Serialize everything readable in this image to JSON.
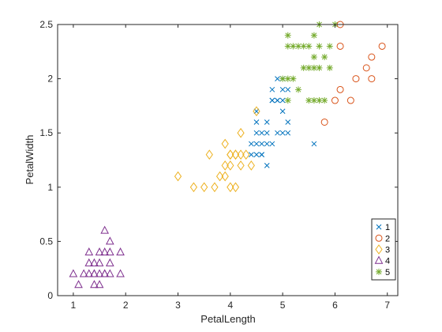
{
  "chart_data": {
    "type": "scatter",
    "xlabel": "PetalLength",
    "ylabel": "PetalWidth",
    "xlim": [
      0.7,
      7.2
    ],
    "ylim": [
      0,
      2.5
    ],
    "xticks": [
      1,
      2,
      3,
      4,
      5,
      6,
      7
    ],
    "yticks": [
      0,
      0.5,
      1,
      1.5,
      2,
      2.5
    ],
    "grid": false,
    "legend_position": "bottom-right",
    "series": [
      {
        "name": "1",
        "marker": "x",
        "color": "#0072BD",
        "points": [
          [
            4.4,
            1.3
          ],
          [
            4.5,
            1.3
          ],
          [
            4.4,
            1.4
          ],
          [
            4.5,
            1.5
          ],
          [
            4.6,
            1.5
          ],
          [
            4.6,
            1.4
          ],
          [
            4.5,
            1.6
          ],
          [
            4.5,
            1.7
          ],
          [
            4.6,
            1.3
          ],
          [
            4.7,
            1.4
          ],
          [
            4.7,
            1.5
          ],
          [
            4.7,
            1.6
          ],
          [
            4.7,
            1.2
          ],
          [
            4.8,
            1.8
          ],
          [
            4.8,
            1.4
          ],
          [
            4.9,
            1.5
          ],
          [
            4.9,
            1.8
          ],
          [
            4.8,
            1.9
          ],
          [
            4.9,
            2.0
          ],
          [
            5.0,
            1.7
          ],
          [
            5.0,
            1.9
          ],
          [
            5.0,
            1.5
          ],
          [
            5.1,
            1.5
          ],
          [
            5.1,
            1.6
          ],
          [
            5.0,
            2.0
          ],
          [
            5.1,
            1.9
          ],
          [
            4.9,
            1.8
          ],
          [
            5.6,
            1.4
          ],
          [
            4.6,
            1.3
          ],
          [
            4.8,
            1.8
          ],
          [
            5.0,
            1.8
          ],
          [
            4.5,
            1.4
          ]
        ]
      },
      {
        "name": "2",
        "marker": "o",
        "color": "#D95319",
        "points": [
          [
            5.8,
            1.6
          ],
          [
            6.0,
            1.8
          ],
          [
            6.1,
            1.9
          ],
          [
            6.1,
            2.3
          ],
          [
            6.1,
            2.5
          ],
          [
            6.3,
            1.8
          ],
          [
            6.4,
            2.0
          ],
          [
            6.6,
            2.1
          ],
          [
            6.7,
            2.0
          ],
          [
            6.7,
            2.2
          ],
          [
            6.9,
            2.3
          ]
        ]
      },
      {
        "name": "3",
        "marker": "diamond",
        "color": "#EDB120",
        "points": [
          [
            3.0,
            1.1
          ],
          [
            3.3,
            1.0
          ],
          [
            3.5,
            1.0
          ],
          [
            3.6,
            1.3
          ],
          [
            3.7,
            1.0
          ],
          [
            3.8,
            1.1
          ],
          [
            3.9,
            1.2
          ],
          [
            3.9,
            1.1
          ],
          [
            3.9,
            1.4
          ],
          [
            4.0,
            1.0
          ],
          [
            4.0,
            1.2
          ],
          [
            4.0,
            1.3
          ],
          [
            4.1,
            1.3
          ],
          [
            4.1,
            1.0
          ],
          [
            4.2,
            1.3
          ],
          [
            4.2,
            1.2
          ],
          [
            4.3,
            1.3
          ],
          [
            4.4,
            1.2
          ],
          [
            4.5,
            1.7
          ],
          [
            4.2,
            1.5
          ],
          [
            4.1,
            1.3
          ],
          [
            4.0,
            1.3
          ]
        ]
      },
      {
        "name": "4",
        "marker": "triangle",
        "color": "#7E2F8E",
        "points": [
          [
            1.0,
            0.2
          ],
          [
            1.1,
            0.1
          ],
          [
            1.2,
            0.2
          ],
          [
            1.3,
            0.2
          ],
          [
            1.3,
            0.3
          ],
          [
            1.3,
            0.4
          ],
          [
            1.4,
            0.1
          ],
          [
            1.4,
            0.2
          ],
          [
            1.4,
            0.3
          ],
          [
            1.5,
            0.1
          ],
          [
            1.5,
            0.2
          ],
          [
            1.5,
            0.4
          ],
          [
            1.6,
            0.2
          ],
          [
            1.6,
            0.4
          ],
          [
            1.6,
            0.6
          ],
          [
            1.7,
            0.2
          ],
          [
            1.7,
            0.4
          ],
          [
            1.7,
            0.5
          ],
          [
            1.7,
            0.3
          ],
          [
            1.9,
            0.2
          ],
          [
            1.9,
            0.4
          ],
          [
            1.5,
            0.3
          ],
          [
            1.6,
            0.2
          ],
          [
            1.4,
            0.2
          ]
        ]
      },
      {
        "name": "5",
        "marker": "asterisk",
        "color": "#77AC30",
        "points": [
          [
            5.1,
            1.8
          ],
          [
            5.1,
            2.0
          ],
          [
            5.1,
            2.4
          ],
          [
            5.2,
            2.0
          ],
          [
            5.2,
            2.3
          ],
          [
            5.3,
            1.9
          ],
          [
            5.3,
            2.3
          ],
          [
            5.4,
            2.1
          ],
          [
            5.4,
            2.3
          ],
          [
            5.5,
            1.8
          ],
          [
            5.5,
            2.1
          ],
          [
            5.5,
            2.3
          ],
          [
            5.6,
            1.8
          ],
          [
            5.6,
            2.1
          ],
          [
            5.6,
            2.2
          ],
          [
            5.6,
            2.4
          ],
          [
            5.7,
            1.8
          ],
          [
            5.7,
            2.1
          ],
          [
            5.7,
            2.3
          ],
          [
            5.7,
            2.5
          ],
          [
            5.8,
            1.8
          ],
          [
            5.8,
            2.2
          ],
          [
            5.9,
            2.1
          ],
          [
            5.9,
            2.3
          ],
          [
            6.0,
            2.5
          ],
          [
            5.0,
            2.0
          ],
          [
            5.1,
            2.3
          ]
        ]
      }
    ]
  }
}
